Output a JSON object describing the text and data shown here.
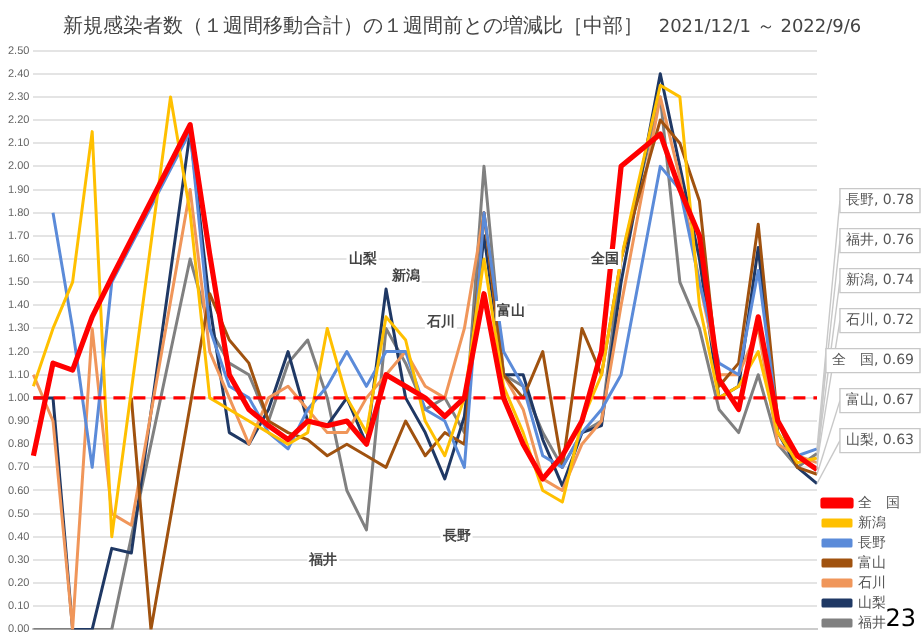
{
  "chart_data": {
    "type": "line",
    "title": "新規感染者数（１週間移動合計）の１週間前との増減比［中部］",
    "subtitle": "2021/12/1 ～ 2022/9/6",
    "categories": [
      null,
      null,
      null,
      null,
      null,
      null,
      null,
      null,
      null,
      null,
      null,
      null,
      null,
      null,
      null,
      null,
      null,
      null,
      null,
      null,
      null,
      null,
      null,
      null,
      null,
      null,
      null,
      null,
      null,
      null,
      null,
      null,
      null,
      null,
      null,
      null,
      null,
      null,
      null,
      null,
      null
    ],
    "ylim": [
      0,
      2.5
    ],
    "yticks": [
      {
        "value": 0,
        "label": "0.00"
      },
      {
        "value": 0.1,
        "label": "0.10"
      },
      {
        "value": 0.2,
        "label": "0.20"
      },
      {
        "value": 0.3,
        "label": "0.30"
      },
      {
        "value": 0.4,
        "label": "0.40"
      },
      {
        "value": 0.5,
        "label": "0.50"
      },
      {
        "value": 0.6,
        "label": "0.60"
      },
      {
        "value": 0.7,
        "label": "0.70"
      },
      {
        "value": 0.8,
        "label": "0.80"
      },
      {
        "value": 0.9,
        "label": "0.90"
      },
      {
        "value": 1,
        "label": "1.00"
      },
      {
        "value": 1.1,
        "label": "1.10"
      },
      {
        "value": 1.2,
        "label": "1.20"
      },
      {
        "value": 1.3,
        "label": "1.30"
      },
      {
        "value": 1.4,
        "label": "1.40"
      },
      {
        "value": 1.5,
        "label": "1.50"
      },
      {
        "value": 1.6,
        "label": "1.60"
      },
      {
        "value": 1.7,
        "label": "1.70"
      },
      {
        "value": 1.8,
        "label": "1.80"
      },
      {
        "value": 1.9,
        "label": "1.90"
      },
      {
        "value": 2,
        "label": "2.00"
      },
      {
        "value": 2.1,
        "label": "2.10"
      },
      {
        "value": 2.2,
        "label": "2.20"
      },
      {
        "value": 2.3,
        "label": "2.30"
      },
      {
        "value": 2.4,
        "label": "2.40"
      },
      {
        "value": 2.5,
        "label": "2.50"
      }
    ],
    "tick_labels": "y",
    "grid": "y",
    "legend": "bottom right",
    "marker": "none",
    "line_style": "solid",
    "ref_lines": [
      {
        "axis": "y",
        "value": 1,
        "color": "#ff0000",
        "line_style": "dashed"
      }
    ],
    "series": [
      {
        "name": "全　国",
        "color": "#ff0000",
        "values": [
          0.75,
          1.15,
          1.12,
          1.35,
          1.52,
          null,
          null,
          null,
          2.18,
          1.62,
          1.1,
          0.95,
          0.88,
          0.82,
          0.9,
          0.88,
          0.9,
          0.8,
          1.1,
          1.05,
          1.0,
          0.92,
          1.0,
          1.45,
          1.0,
          0.8,
          0.65,
          0.75,
          0.9,
          1.2,
          2.0,
          null,
          2.14,
          1.9,
          1.7,
          1.08,
          0.95,
          1.35,
          0.9,
          0.75,
          0.69
        ],
        "value_labels": [
          null,
          null,
          null,
          null,
          null,
          null,
          null,
          null,
          null,
          null,
          null,
          null,
          null,
          null,
          null,
          null,
          null,
          null,
          null,
          null,
          null,
          null,
          null,
          null,
          null,
          null,
          null,
          null,
          null,
          null,
          null,
          null,
          null,
          null,
          null,
          null,
          null,
          null,
          null,
          null,
          "全　国, 0.69"
        ]
      },
      {
        "name": "新潟",
        "color": "#ffc000",
        "values": [
          1.05,
          1.3,
          1.5,
          2.15,
          0.4,
          null,
          null,
          2.3,
          1.8,
          1.0,
          0.95,
          0.9,
          0.85,
          0.8,
          0.85,
          1.3,
          1.0,
          0.85,
          1.35,
          1.25,
          0.9,
          0.75,
          1.0,
          1.6,
          1.05,
          0.85,
          0.6,
          0.55,
          0.9,
          1.1,
          1.6,
          null,
          2.35,
          2.3,
          1.4,
          1.0,
          1.05,
          1.2,
          0.85,
          0.72,
          0.74
        ],
        "value_labels": [
          null,
          null,
          null,
          null,
          null,
          null,
          null,
          null,
          null,
          null,
          null,
          null,
          null,
          null,
          null,
          null,
          null,
          null,
          null,
          null,
          null,
          null,
          null,
          null,
          null,
          null,
          null,
          null,
          null,
          null,
          null,
          null,
          null,
          null,
          null,
          null,
          null,
          null,
          null,
          null,
          "新潟, 0.74"
        ]
      },
      {
        "name": "長野",
        "color": "#5b8bd9",
        "values": [
          null,
          1.8,
          1.3,
          0.7,
          1.5,
          null,
          null,
          null,
          2.15,
          1.3,
          1.05,
          1.0,
          0.85,
          0.78,
          0.95,
          1.05,
          1.2,
          1.05,
          1.2,
          1.2,
          0.95,
          0.9,
          0.7,
          1.8,
          1.2,
          1.05,
          0.75,
          0.7,
          0.85,
          0.95,
          1.1,
          null,
          2.0,
          1.9,
          1.5,
          1.15,
          1.1,
          1.55,
          0.9,
          0.75,
          0.78
        ],
        "value_labels": [
          null,
          null,
          null,
          null,
          null,
          null,
          null,
          null,
          null,
          null,
          null,
          null,
          null,
          null,
          null,
          null,
          null,
          null,
          null,
          null,
          null,
          null,
          null,
          null,
          null,
          null,
          null,
          null,
          null,
          null,
          null,
          null,
          null,
          null,
          null,
          null,
          null,
          null,
          null,
          null,
          "長野, 0.78"
        ]
      },
      {
        "name": "富山",
        "color": "#a0520f",
        "values": [
          null,
          null,
          null,
          null,
          null,
          1.0,
          0.0,
          null,
          null,
          1.45,
          1.25,
          1.15,
          0.9,
          0.85,
          0.82,
          0.75,
          0.8,
          0.75,
          0.7,
          0.9,
          0.75,
          0.85,
          0.8,
          1.8,
          1.1,
          1.0,
          1.2,
          0.7,
          1.3,
          1.1,
          1.6,
          null,
          2.2,
          2.1,
          1.85,
          1.05,
          1.15,
          1.75,
          0.9,
          0.7,
          0.67
        ],
        "value_labels": [
          null,
          null,
          null,
          null,
          null,
          null,
          null,
          null,
          null,
          null,
          null,
          null,
          null,
          null,
          null,
          null,
          null,
          null,
          null,
          null,
          null,
          null,
          null,
          null,
          null,
          null,
          null,
          null,
          null,
          null,
          null,
          null,
          null,
          null,
          null,
          null,
          null,
          null,
          null,
          null,
          "富山, 0.67"
        ]
      },
      {
        "name": "石川",
        "color": "#f0965a",
        "values": [
          1.1,
          0.9,
          0.0,
          1.3,
          0.5,
          0.45,
          null,
          null,
          1.9,
          1.2,
          1.0,
          0.8,
          1.0,
          1.05,
          0.95,
          0.85,
          0.85,
          1.0,
          1.1,
          1.2,
          1.05,
          1.0,
          1.3,
          1.8,
          1.1,
          0.95,
          0.65,
          0.6,
          0.8,
          0.9,
          1.4,
          null,
          2.3,
          1.95,
          1.5,
          1.1,
          1.1,
          1.3,
          0.8,
          0.75,
          0.72
        ],
        "value_labels": [
          null,
          null,
          null,
          null,
          null,
          null,
          null,
          null,
          null,
          null,
          null,
          null,
          null,
          null,
          null,
          null,
          null,
          null,
          null,
          null,
          null,
          null,
          null,
          null,
          null,
          null,
          null,
          null,
          null,
          null,
          null,
          null,
          null,
          null,
          null,
          null,
          null,
          null,
          null,
          null,
          "石川, 0.72"
        ]
      },
      {
        "name": "山梨",
        "color": "#1f3864",
        "values": [
          1.0,
          1.0,
          0.0,
          0.0,
          0.35,
          0.33,
          null,
          null,
          2.15,
          1.4,
          0.85,
          0.8,
          0.95,
          1.2,
          0.9,
          0.88,
          1.0,
          0.8,
          1.47,
          1.0,
          0.85,
          0.65,
          0.92,
          1.7,
          1.1,
          1.1,
          0.82,
          0.62,
          0.85,
          0.88,
          1.5,
          null,
          2.4,
          2.0,
          1.6,
          1.0,
          1.05,
          1.65,
          0.85,
          0.7,
          0.63
        ],
        "value_labels": [
          null,
          null,
          null,
          null,
          null,
          null,
          null,
          null,
          null,
          null,
          null,
          null,
          null,
          null,
          null,
          null,
          null,
          null,
          null,
          null,
          null,
          null,
          null,
          null,
          null,
          null,
          null,
          null,
          null,
          null,
          null,
          null,
          null,
          null,
          null,
          null,
          null,
          null,
          null,
          null,
          "山梨, 0.63"
        ]
      },
      {
        "name": "福井",
        "color": "#808080",
        "values": [
          0.0,
          0.0,
          0.0,
          0.0,
          0.0,
          null,
          null,
          null,
          1.6,
          1.3,
          1.15,
          1.1,
          0.9,
          1.15,
          1.25,
          1.0,
          0.6,
          0.43,
          1.3,
          1.15,
          0.95,
          1.0,
          0.85,
          2.0,
          1.1,
          1.05,
          0.85,
          0.7,
          0.85,
          0.9,
          1.6,
          null,
          2.3,
          1.5,
          1.3,
          0.95,
          0.85,
          1.1,
          0.8,
          0.7,
          0.76
        ],
        "value_labels": [
          null,
          null,
          null,
          null,
          null,
          null,
          null,
          null,
          null,
          null,
          null,
          null,
          null,
          null,
          null,
          null,
          null,
          null,
          null,
          null,
          null,
          null,
          null,
          null,
          null,
          null,
          null,
          null,
          null,
          null,
          null,
          null,
          null,
          null,
          null,
          null,
          null,
          null,
          null,
          null,
          "福井, 0.76"
        ]
      }
    ],
    "annotations": [
      "山梨",
      "新潟",
      "石川",
      "長野",
      "福井",
      "富山",
      "全国",
      "23"
    ]
  }
}
